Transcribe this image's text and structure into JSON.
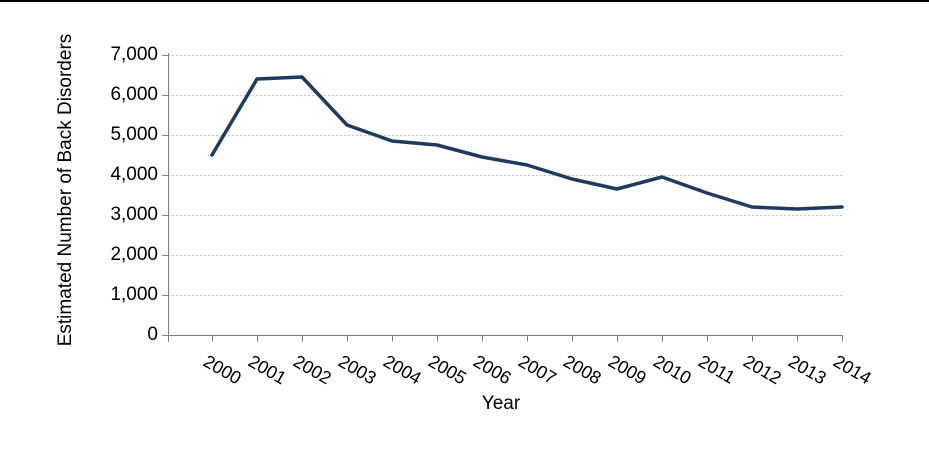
{
  "chart_data": {
    "type": "line",
    "title": "",
    "xlabel": "Year",
    "ylabel": "Estimated Number of Back Disorders",
    "categories": [
      "2000",
      "2001",
      "2002",
      "2003",
      "2004",
      "2005",
      "2006",
      "2007",
      "2008",
      "2009",
      "2010",
      "2011",
      "2012",
      "2013",
      "2014"
    ],
    "values": [
      4500,
      6400,
      6450,
      5250,
      4850,
      4750,
      4450,
      4250,
      3900,
      3650,
      3950,
      3550,
      3200,
      3150,
      3200
    ],
    "ylim": [
      0,
      7000
    ],
    "ytick_step": 1000,
    "ytick_labels": [
      "0",
      "1,000",
      "2,000",
      "3,000",
      "4,000",
      "5,000",
      "6,000",
      "7,000"
    ],
    "xtick_label_rotation_deg": -30,
    "grid": {
      "horizontal": true,
      "vertical": false,
      "style": "dashed"
    },
    "legend": "none",
    "colors": {
      "line": "#1E3A5F",
      "gridline": "#C6C6C6",
      "axis": "#808080",
      "text": "#000000",
      "background": "#FFFFFF",
      "top_border": "#000000"
    }
  }
}
